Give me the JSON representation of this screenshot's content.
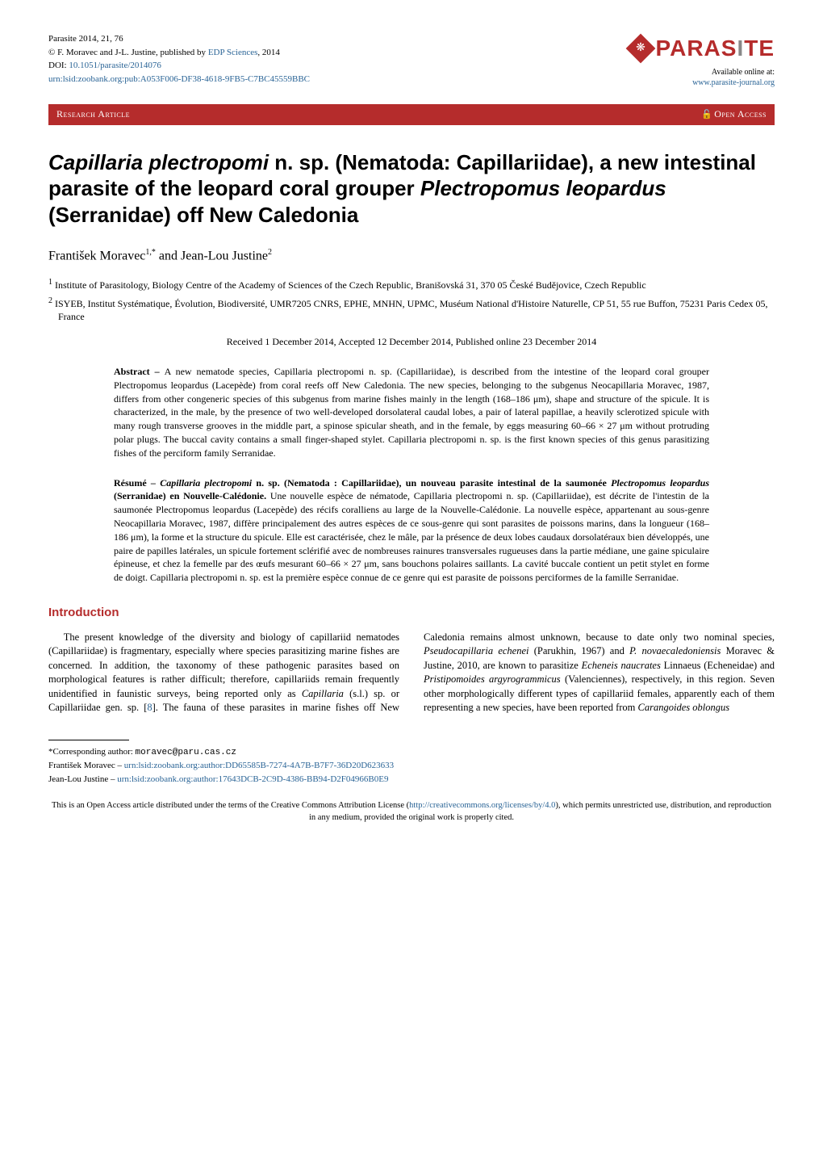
{
  "header": {
    "citation": "Parasite 2014, 21, 76",
    "copyright": "© F. Moravec and J-L. Justine, published by ",
    "publisher_link_text": "EDP Sciences",
    "copyright_year": ", 2014",
    "doi_label": "DOI: ",
    "doi_link": "10.1051/parasite/2014076",
    "zoobank_link": "urn:lsid:zoobank.org:pub:A053F006-DF38-4618-9FB5-C7BC45559BBC",
    "journal_name_main": "PARAS",
    "journal_name_i": "I",
    "journal_name_end": "TE",
    "available_text": "Available online at:",
    "journal_url": "www.parasite-journal.org"
  },
  "banner": {
    "left": "Research Article",
    "right": "Open Access"
  },
  "title": {
    "part1": "Capillaria plectropomi",
    "part2": " n. sp. (Nematoda: Capillariidae), a new intestinal parasite of the leopard coral grouper ",
    "part3": "Plectropomus leopardus",
    "part4": " (Serranidae) off New Caledonia"
  },
  "authors": {
    "a1_name": "František Moravec",
    "a1_sup": "1,*",
    "sep": " and ",
    "a2_name": "Jean-Lou Justine",
    "a2_sup": "2"
  },
  "affiliations": {
    "aff1_sup": "1",
    "aff1": " Institute of Parasitology, Biology Centre of the Academy of Sciences of the Czech Republic, Branišovská 31, 370 05 České Budějovice, Czech Republic",
    "aff2_sup": "2",
    "aff2": " ISYEB, Institut Systématique, Évolution, Biodiversité, UMR7205 CNRS, EPHE, MNHN, UPMC, Muséum National d'Histoire Naturelle, CP 51, 55 rue Buffon, 75231 Paris Cedex 05, France"
  },
  "received": "Received 1 December 2014, Accepted 12 December 2014, Published online 23 December 2014",
  "abstract_en": {
    "label": "Abstract – ",
    "text": "A new nematode species, Capillaria plectropomi n. sp. (Capillariidae), is described from the intestine of the leopard coral grouper Plectropomus leopardus (Lacepède) from coral reefs off New Caledonia. The new species, belonging to the subgenus Neocapillaria Moravec, 1987, differs from other congeneric species of this subgenus from marine fishes mainly in the length (168–186 μm), shape and structure of the spicule. It is characterized, in the male, by the presence of two well-developed dorsolateral caudal lobes, a pair of lateral papillae, a heavily sclerotized spicule with many rough transverse grooves in the middle part, a spinose spicular sheath, and in the female, by eggs measuring 60–66 × 27 μm without protruding polar plugs. The buccal cavity contains a small finger-shaped stylet. Capillaria plectropomi n. sp. is the first known species of this genus parasitizing fishes of the perciform family Serranidae."
  },
  "abstract_fr": {
    "label": "Résumé – ",
    "title_italic": "Capillaria plectropomi",
    "title_rest": " n. sp. (Nematoda : Capillariidae), un nouveau parasite intestinal de la saumonée ",
    "title_species2": "Plectropomus leopardus",
    "title_end": " (Serranidae) en Nouvelle-Calédonie. ",
    "text": "Une nouvelle espèce de nématode, Capillaria plectropomi n. sp. (Capillariidae), est décrite de l'intestin de la saumonée Plectropomus leopardus (Lacepède) des récifs coralliens au large de la Nouvelle-Calédonie. La nouvelle espèce, appartenant au sous-genre Neocapillaria Moravec, 1987, diffère principalement des autres espèces de ce sous-genre qui sont parasites de poissons marins, dans la longueur (168–186 μm), la forme et la structure du spicule. Elle est caractérisée, chez le mâle, par la présence de deux lobes caudaux dorsolatéraux bien développés, une paire de papilles latérales, un spicule fortement sclérifié avec de nombreuses rainures transversales rugueuses dans la partie médiane, une gaine spiculaire épineuse, et chez la femelle par des œufs mesurant 60–66 × 27 μm, sans bouchons polaires saillants. La cavité buccale contient un petit stylet en forme de doigt. Capillaria plectropomi n. sp. est la première espèce connue de ce genre qui est parasite de poissons perciformes de la famille Serranidae."
  },
  "intro": {
    "heading": "Introduction",
    "p1a": "The present knowledge of the diversity and biology of capillariid nematodes (Capillariidae) is fragmentary, especially where species parasitizing marine fishes are concerned. In addition, the taxonomy of these pathogenic parasites based on morphological features is rather difficult; therefore, capillariids remain frequently unidentified in faunistic surveys, being reported only as ",
    "p1b_italic": "Capillaria",
    "p1c": " (s.l.) sp. or Capillariidae gen. sp. [",
    "p1_ref": "8",
    "p1d": "]. The fauna of these parasites in marine fishes off New Caledonia remains almost unknown, because to date only two nominal species, ",
    "p1e_italic": "Pseudocapillaria echenei",
    "p1f": " (Parukhin, 1967) and ",
    "p1g_italic": "P. novaecaledoniensis",
    "p1h": " Moravec & Justine, 2010, are known to parasitize ",
    "p1i_italic": "Echeneis naucrates",
    "p1j": " Linnaeus (Echeneidae) and ",
    "p1k_italic": "Pristipomoides argyrogrammicus",
    "p1l": " (Valenciennes), respectively, in this region. Seven other morphologically different types of capillariid females, apparently each of them representing a new species, have been reported from ",
    "p1m_italic": "Carangoides oblongus"
  },
  "footnotes": {
    "corr_label": "*Corresponding author: ",
    "corr_email": "moravec@paru.cas.cz",
    "auth1_name": "František Moravec – ",
    "auth1_urn": "urn:lsid:zoobank.org:author:DD65585B-7274-4A7B-B7F7-36D20D623633",
    "auth2_name": "Jean-Lou Justine – ",
    "auth2_urn": "urn:lsid:zoobank.org:author:17643DCB-2C9D-4386-BB94-D2F04966B0E9"
  },
  "license": {
    "text1": "This is an Open Access article distributed under the terms of the Creative Commons Attribution License (",
    "link": "http://creativecommons.org/licenses/by/4.0",
    "text2": "), which permits unrestricted use, distribution, and reproduction in any medium, provided the original work is properly cited."
  },
  "colors": {
    "brand": "#b52c2c",
    "link": "#2a6496",
    "text": "#000000",
    "bg": "#ffffff"
  }
}
